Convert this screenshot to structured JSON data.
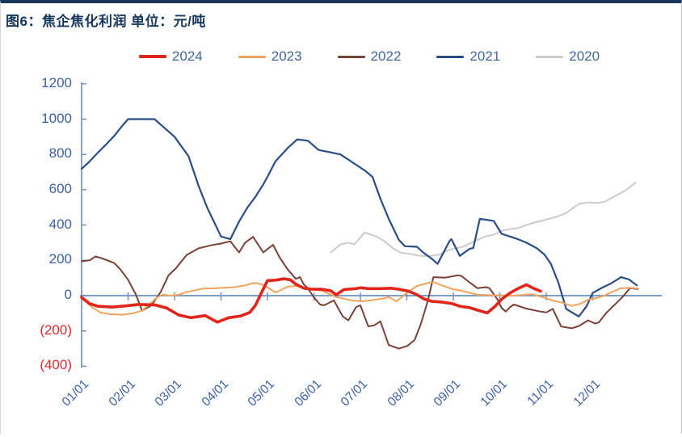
{
  "header": {
    "title": "图6：焦企焦化利润  单位：元/吨"
  },
  "legend": {
    "items": [
      {
        "label": "2024",
        "color": "#e1251b",
        "thick": true
      },
      {
        "label": "2023",
        "color": "#f0a35e",
        "thick": false
      },
      {
        "label": "2022",
        "color": "#7a4138",
        "thick": false
      },
      {
        "label": "2021",
        "color": "#2a4d87",
        "thick": false
      },
      {
        "label": "2020",
        "color": "#cbcbcb",
        "thick": false
      }
    ]
  },
  "colors": {
    "axis": "#6d8ebd",
    "title": "#17365d",
    "tick_label": "#3b5fa9",
    "negative_tick": "#e0292d",
    "top_border": "#17365d"
  },
  "chart_data": {
    "type": "line",
    "title": "图6：焦企焦化利润",
    "unit_label": "单位：元/吨",
    "xlabel": "",
    "ylabel": "元/吨",
    "ylim": [
      -400,
      1200
    ],
    "xlim": [
      0,
      12.5
    ],
    "grid": false,
    "legend_position": "top",
    "x_unit": "month index, 0 = 01/01, 11 = 12/01",
    "x_tick_labels": [
      "01/01",
      "02/01",
      "03/01",
      "04/01",
      "05/01",
      "06/01",
      "07/01",
      "08/01",
      "09/01",
      "10/01",
      "11/01",
      "12/01"
    ],
    "y_ticks": [
      {
        "value": 1200,
        "label": "1200",
        "negative": false
      },
      {
        "value": 1000,
        "label": "1000",
        "negative": false
      },
      {
        "value": 800,
        "label": "800",
        "negative": false
      },
      {
        "value": 600,
        "label": "600",
        "negative": false
      },
      {
        "value": 400,
        "label": "400",
        "negative": false
      },
      {
        "value": 200,
        "label": "200",
        "negative": false
      },
      {
        "value": 0,
        "label": "0",
        "negative": false
      },
      {
        "value": -200,
        "label": "(200)",
        "negative": true
      },
      {
        "value": -400,
        "label": "(400)",
        "negative": true
      }
    ],
    "series": [
      {
        "name": "2020",
        "color": "#cbcbcb",
        "width": 2,
        "points": [
          [
            5.36,
            245
          ],
          [
            5.57,
            290
          ],
          [
            5.74,
            300
          ],
          [
            5.87,
            290
          ],
          [
            6.09,
            358
          ],
          [
            6.35,
            335
          ],
          [
            6.52,
            308
          ],
          [
            6.7,
            268
          ],
          [
            6.87,
            243
          ],
          [
            7.1,
            235
          ],
          [
            7.3,
            225
          ],
          [
            7.52,
            225
          ],
          [
            7.7,
            232
          ],
          [
            7.87,
            255
          ],
          [
            8.04,
            268
          ],
          [
            8.22,
            278
          ],
          [
            8.39,
            300
          ],
          [
            8.57,
            322
          ],
          [
            8.7,
            336
          ],
          [
            8.87,
            345
          ],
          [
            9.04,
            368
          ],
          [
            9.22,
            377
          ],
          [
            9.39,
            382
          ],
          [
            9.57,
            400
          ],
          [
            9.74,
            414
          ],
          [
            9.91,
            425
          ],
          [
            10.09,
            437
          ],
          [
            10.26,
            450
          ],
          [
            10.43,
            468
          ],
          [
            10.7,
            520
          ],
          [
            10.9,
            528
          ],
          [
            11.1,
            525
          ],
          [
            11.26,
            532
          ],
          [
            11.45,
            560
          ],
          [
            11.6,
            580
          ],
          [
            11.75,
            605
          ],
          [
            11.92,
            640
          ]
        ]
      },
      {
        "name": "2021",
        "color": "#2a4d87",
        "width": 2.2,
        "points": [
          [
            0.0,
            718
          ],
          [
            0.17,
            760
          ],
          [
            0.35,
            810
          ],
          [
            0.52,
            855
          ],
          [
            0.7,
            905
          ],
          [
            0.87,
            960
          ],
          [
            1.0,
            1000
          ],
          [
            1.4,
            1000
          ],
          [
            1.57,
            1000
          ],
          [
            1.74,
            960
          ],
          [
            2.0,
            900
          ],
          [
            2.3,
            790
          ],
          [
            2.52,
            620
          ],
          [
            2.7,
            500
          ],
          [
            2.9,
            390
          ],
          [
            3.0,
            335
          ],
          [
            3.2,
            320
          ],
          [
            3.39,
            420
          ],
          [
            3.57,
            500
          ],
          [
            3.74,
            560
          ],
          [
            3.91,
            630
          ],
          [
            4.0,
            673
          ],
          [
            4.17,
            760
          ],
          [
            4.43,
            835
          ],
          [
            4.64,
            885
          ],
          [
            4.87,
            878
          ],
          [
            5.1,
            825
          ],
          [
            5.3,
            815
          ],
          [
            5.57,
            800
          ],
          [
            5.83,
            755
          ],
          [
            6.09,
            710
          ],
          [
            6.26,
            673
          ],
          [
            6.43,
            550
          ],
          [
            6.61,
            435
          ],
          [
            6.83,
            315
          ],
          [
            6.96,
            280
          ],
          [
            7.22,
            277
          ],
          [
            7.35,
            245
          ],
          [
            7.53,
            210
          ],
          [
            7.66,
            180
          ],
          [
            7.92,
            310
          ],
          [
            7.96,
            320
          ],
          [
            8.14,
            225
          ],
          [
            8.35,
            265
          ],
          [
            8.43,
            270
          ],
          [
            8.57,
            435
          ],
          [
            8.7,
            430
          ],
          [
            8.87,
            423
          ],
          [
            9.04,
            350
          ],
          [
            9.22,
            335
          ],
          [
            9.39,
            320
          ],
          [
            9.57,
            300
          ],
          [
            9.8,
            268
          ],
          [
            9.97,
            230
          ],
          [
            10.1,
            180
          ],
          [
            10.26,
            75
          ],
          [
            10.43,
            -75
          ],
          [
            10.7,
            -118
          ],
          [
            10.87,
            -60
          ],
          [
            11.0,
            15
          ],
          [
            11.2,
            45
          ],
          [
            11.4,
            70
          ],
          [
            11.61,
            105
          ],
          [
            11.78,
            92
          ],
          [
            11.95,
            58
          ]
        ]
      },
      {
        "name": "2022",
        "color": "#7a4138",
        "width": 2,
        "points": [
          [
            0.0,
            195
          ],
          [
            0.17,
            200
          ],
          [
            0.3,
            222
          ],
          [
            0.45,
            210
          ],
          [
            0.7,
            185
          ],
          [
            0.83,
            150
          ],
          [
            1.0,
            90
          ],
          [
            1.17,
            5
          ],
          [
            1.3,
            -85
          ],
          [
            1.5,
            -55
          ],
          [
            1.7,
            20
          ],
          [
            1.87,
            115
          ],
          [
            2.03,
            155
          ],
          [
            2.26,
            230
          ],
          [
            2.52,
            268
          ],
          [
            2.78,
            285
          ],
          [
            3.0,
            295
          ],
          [
            3.2,
            308
          ],
          [
            3.39,
            245
          ],
          [
            3.52,
            300
          ],
          [
            3.69,
            333
          ],
          [
            3.83,
            277
          ],
          [
            3.91,
            245
          ],
          [
            4.12,
            288
          ],
          [
            4.26,
            218
          ],
          [
            4.43,
            150
          ],
          [
            4.61,
            95
          ],
          [
            4.7,
            105
          ],
          [
            4.78,
            64
          ],
          [
            4.87,
            41
          ],
          [
            5.0,
            -10
          ],
          [
            5.13,
            -50
          ],
          [
            5.22,
            -55
          ],
          [
            5.43,
            -27
          ],
          [
            5.62,
            -118
          ],
          [
            5.74,
            -140
          ],
          [
            5.91,
            -64
          ],
          [
            6.0,
            -55
          ],
          [
            6.17,
            -175
          ],
          [
            6.3,
            -168
          ],
          [
            6.43,
            -145
          ],
          [
            6.61,
            -280
          ],
          [
            6.83,
            -300
          ],
          [
            7.01,
            -285
          ],
          [
            7.17,
            -250
          ],
          [
            7.3,
            -160
          ],
          [
            7.45,
            -30
          ],
          [
            7.57,
            105
          ],
          [
            7.83,
            102
          ],
          [
            8.09,
            115
          ],
          [
            8.17,
            112
          ],
          [
            8.35,
            75
          ],
          [
            8.52,
            42
          ],
          [
            8.7,
            48
          ],
          [
            8.78,
            42
          ],
          [
            8.96,
            -25
          ],
          [
            9.04,
            -70
          ],
          [
            9.13,
            -90
          ],
          [
            9.22,
            -65
          ],
          [
            9.3,
            -50
          ],
          [
            9.57,
            -73
          ],
          [
            9.83,
            -88
          ],
          [
            10.0,
            -95
          ],
          [
            10.14,
            -75
          ],
          [
            10.32,
            -175
          ],
          [
            10.55,
            -185
          ],
          [
            10.7,
            -172
          ],
          [
            10.9,
            -140
          ],
          [
            11.05,
            -158
          ],
          [
            11.13,
            -152
          ],
          [
            11.3,
            -95
          ],
          [
            11.48,
            -50
          ],
          [
            11.65,
            -5
          ],
          [
            11.8,
            42
          ],
          [
            11.97,
            38
          ]
        ]
      },
      {
        "name": "2023",
        "color": "#f0a35e",
        "width": 2,
        "points": [
          [
            0.0,
            -15
          ],
          [
            0.2,
            -60
          ],
          [
            0.4,
            -95
          ],
          [
            0.6,
            -105
          ],
          [
            0.9,
            -108
          ],
          [
            1.1,
            -100
          ],
          [
            1.3,
            -85
          ],
          [
            1.5,
            -40
          ],
          [
            1.62,
            -10
          ],
          [
            1.74,
            5
          ],
          [
            1.91,
            0
          ],
          [
            2.09,
            5
          ],
          [
            2.26,
            20
          ],
          [
            2.61,
            40
          ],
          [
            2.9,
            42
          ],
          [
            3.3,
            48
          ],
          [
            3.52,
            58
          ],
          [
            3.65,
            68
          ],
          [
            3.74,
            72
          ],
          [
            3.91,
            62
          ],
          [
            4.09,
            32
          ],
          [
            4.17,
            18
          ],
          [
            4.26,
            28
          ],
          [
            4.43,
            50
          ],
          [
            4.61,
            55
          ],
          [
            4.78,
            45
          ],
          [
            4.96,
            36
          ],
          [
            5.17,
            28
          ],
          [
            5.48,
            -8
          ],
          [
            5.83,
            -28
          ],
          [
            6.04,
            -32
          ],
          [
            6.26,
            -25
          ],
          [
            6.52,
            -15
          ],
          [
            6.61,
            -8
          ],
          [
            6.78,
            -32
          ],
          [
            7.01,
            18
          ],
          [
            7.22,
            55
          ],
          [
            7.48,
            73
          ],
          [
            7.57,
            77
          ],
          [
            7.74,
            60
          ],
          [
            7.97,
            38
          ],
          [
            8.17,
            28
          ],
          [
            8.52,
            5
          ],
          [
            8.87,
            2
          ],
          [
            9.3,
            0
          ],
          [
            9.7,
            8
          ],
          [
            9.97,
            -12
          ],
          [
            10.14,
            -28
          ],
          [
            10.32,
            -38
          ],
          [
            10.55,
            -58
          ],
          [
            10.75,
            -45
          ],
          [
            10.9,
            -23
          ],
          [
            11.08,
            -14
          ],
          [
            11.25,
            0
          ],
          [
            11.43,
            23
          ],
          [
            11.6,
            41
          ],
          [
            11.78,
            45
          ],
          [
            11.95,
            41
          ]
        ]
      },
      {
        "name": "2024",
        "color": "#e1251b",
        "width": 3.6,
        "points": [
          [
            0.0,
            -10
          ],
          [
            0.17,
            -45
          ],
          [
            0.35,
            -60
          ],
          [
            0.65,
            -65
          ],
          [
            0.95,
            -58
          ],
          [
            1.22,
            -50
          ],
          [
            1.57,
            -52
          ],
          [
            1.83,
            -70
          ],
          [
            2.09,
            -110
          ],
          [
            2.35,
            -125
          ],
          [
            2.66,
            -113
          ],
          [
            2.92,
            -150
          ],
          [
            3.17,
            -125
          ],
          [
            3.43,
            -115
          ],
          [
            3.62,
            -95
          ],
          [
            3.74,
            -55
          ],
          [
            3.86,
            10
          ],
          [
            4.0,
            85
          ],
          [
            4.17,
            88
          ],
          [
            4.35,
            95
          ],
          [
            4.49,
            90
          ],
          [
            4.61,
            65
          ],
          [
            4.78,
            42
          ],
          [
            4.96,
            36
          ],
          [
            5.17,
            36
          ],
          [
            5.36,
            28
          ],
          [
            5.48,
            5
          ],
          [
            5.65,
            35
          ],
          [
            5.91,
            40
          ],
          [
            6.0,
            45
          ],
          [
            6.17,
            40
          ],
          [
            6.43,
            40
          ],
          [
            6.66,
            42
          ],
          [
            6.83,
            36
          ],
          [
            7.04,
            25
          ],
          [
            7.22,
            5
          ],
          [
            7.36,
            -18
          ],
          [
            7.53,
            -32
          ],
          [
            7.74,
            -36
          ],
          [
            7.97,
            -45
          ],
          [
            8.14,
            -60
          ],
          [
            8.35,
            -68
          ],
          [
            8.56,
            -85
          ],
          [
            8.73,
            -98
          ],
          [
            8.9,
            -60
          ],
          [
            9.04,
            -20
          ],
          [
            9.22,
            15
          ],
          [
            9.39,
            40
          ],
          [
            9.57,
            62
          ],
          [
            9.74,
            40
          ],
          [
            9.88,
            25
          ]
        ]
      }
    ]
  }
}
